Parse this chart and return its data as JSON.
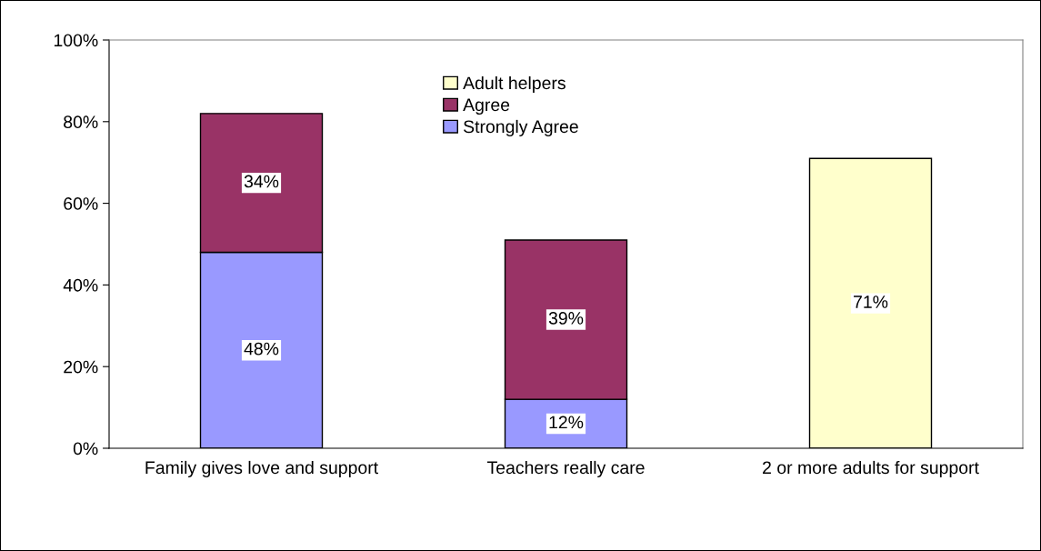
{
  "chart_data": {
    "type": "bar",
    "stacked": true,
    "categories": [
      "Family gives love and support",
      "Teachers really care",
      "2 or more adults for support"
    ],
    "series": [
      {
        "name": "Strongly Agree",
        "color": "#9999ff",
        "values": [
          48,
          12,
          null
        ],
        "value_labels": [
          "48%",
          "12%",
          null
        ]
      },
      {
        "name": "Agree",
        "color": "#993366",
        "values": [
          34,
          39,
          null
        ],
        "value_labels": [
          "34%",
          "39%",
          null
        ]
      },
      {
        "name": "Adult helpers",
        "color": "#ffffcc",
        "values": [
          null,
          null,
          71
        ],
        "value_labels": [
          null,
          null,
          "71%"
        ]
      }
    ],
    "ylim": [
      0,
      100
    ],
    "yticks": [
      {
        "value": 0,
        "label": "0%"
      },
      {
        "value": 20,
        "label": "20%"
      },
      {
        "value": 40,
        "label": "40%"
      },
      {
        "value": 60,
        "label": "60%"
      },
      {
        "value": 80,
        "label": "80%"
      },
      {
        "value": 100,
        "label": "100%"
      }
    ],
    "grid": false,
    "legend": "top"
  }
}
